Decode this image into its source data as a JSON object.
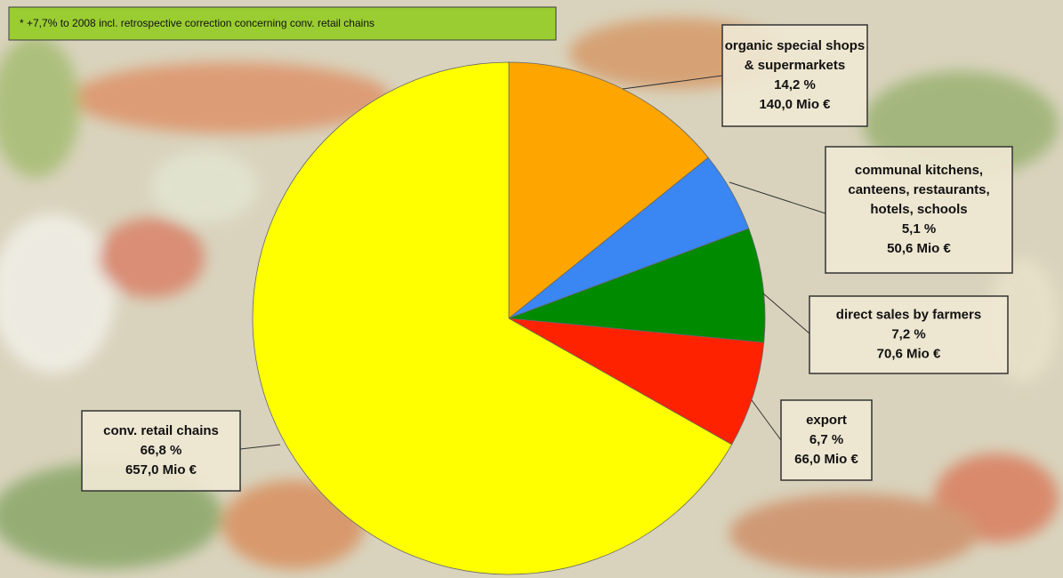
{
  "chart_data": {
    "type": "pie",
    "note": "* +7,7% to 2008 incl. retrospective correction concerning conv. retail chains",
    "categories": [
      [
        "organic special shops",
        "& supermarkets"
      ],
      [
        "communal kitchens,",
        "canteens, restaurants,",
        "hotels, schools"
      ],
      [
        "direct sales by farmers"
      ],
      [
        "export"
      ],
      [
        "conv. retail chains"
      ]
    ],
    "values": [
      14.2,
      5.1,
      7.2,
      6.7,
      66.8
    ],
    "value_labels": [
      "14,2 %",
      "5,1 %",
      "7,2 %",
      "6,7  %",
      "66,8 %"
    ],
    "amounts": [
      140.0,
      50.6,
      70.6,
      66.0,
      657.0
    ],
    "amount_labels": [
      "140,0 Mio €",
      "50,6 Mio €",
      "70,6 Mio €",
      "66,0 Mio €",
      "657,0 Mio €"
    ],
    "colors": [
      "#ffa500",
      "#3a86f2",
      "#008a00",
      "#ff2200",
      "#ffff00"
    ]
  }
}
